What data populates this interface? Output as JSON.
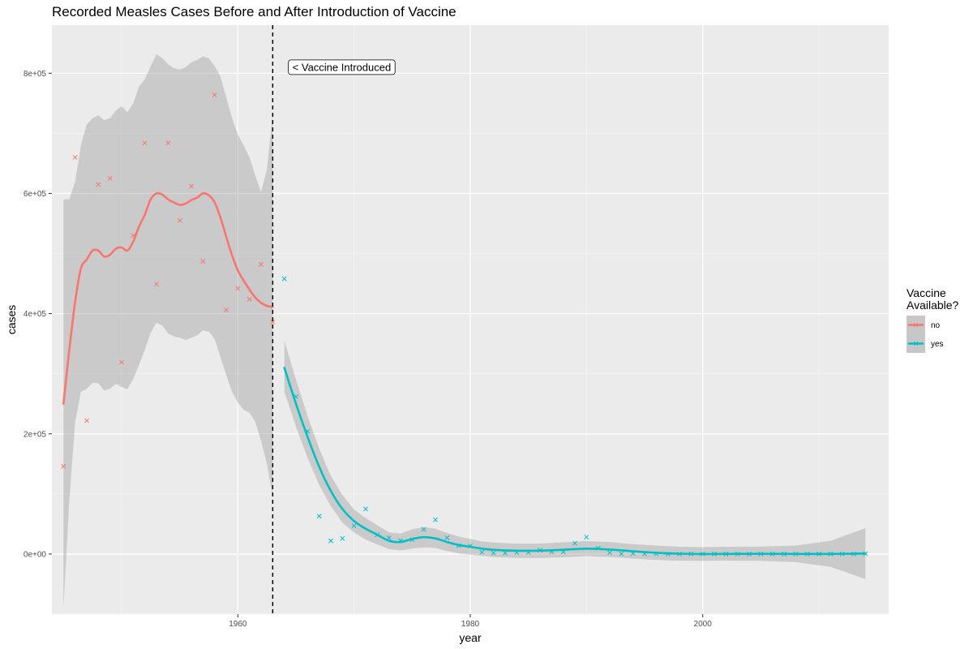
{
  "chart_data": {
    "type": "scatter",
    "title": "Recorded Measles Cases Before and After Introduction of Vaccine",
    "xlabel": "year",
    "ylabel": "cases",
    "xlim": [
      1944,
      2016
    ],
    "ylim": [
      -100000,
      880000
    ],
    "x_ticks": [
      1960,
      1980,
      2000
    ],
    "x_tick_labels": [
      "1960",
      "1980",
      "2000"
    ],
    "y_ticks": [
      0,
      200000,
      400000,
      600000,
      800000
    ],
    "y_tick_labels": [
      "0e+00",
      "2e+05",
      "4e+05",
      "6e+05",
      "8e+05"
    ],
    "grid": true,
    "legend": {
      "title_lines": [
        "Vaccine",
        "Available?"
      ],
      "position": "right"
    },
    "vline": {
      "x": 1963,
      "style": "dashed"
    },
    "annotation": {
      "text": "< Vaccine Introduced",
      "x": 1964,
      "y": 810000
    },
    "series": [
      {
        "name": "no",
        "color": "#F8766D",
        "points": [
          [
            1945,
            146000
          ],
          [
            1946,
            660000
          ],
          [
            1947,
            222000
          ],
          [
            1948,
            615000
          ],
          [
            1949,
            625000
          ],
          [
            1950,
            319000
          ],
          [
            1951,
            530000
          ],
          [
            1952,
            684000
          ],
          [
            1953,
            449000
          ],
          [
            1954,
            684000
          ],
          [
            1955,
            555000
          ],
          [
            1956,
            612000
          ],
          [
            1957,
            487000
          ],
          [
            1958,
            764000
          ],
          [
            1959,
            406000
          ],
          [
            1960,
            442000
          ],
          [
            1961,
            424000
          ],
          [
            1962,
            482000
          ],
          [
            1963,
            386000
          ]
        ],
        "smooth": [
          [
            1945,
            250000
          ],
          [
            1945.5,
            340000
          ],
          [
            1946,
            420000
          ],
          [
            1946.5,
            475000
          ],
          [
            1947,
            490000
          ],
          [
            1947.5,
            505000
          ],
          [
            1948,
            505000
          ],
          [
            1948.5,
            495000
          ],
          [
            1949,
            498000
          ],
          [
            1949.5,
            508000
          ],
          [
            1950,
            510000
          ],
          [
            1950.5,
            505000
          ],
          [
            1951,
            520000
          ],
          [
            1951.5,
            545000
          ],
          [
            1952,
            565000
          ],
          [
            1952.5,
            590000
          ],
          [
            1953,
            600000
          ],
          [
            1953.5,
            598000
          ],
          [
            1954,
            590000
          ],
          [
            1954.5,
            585000
          ],
          [
            1955,
            581000
          ],
          [
            1955.5,
            583000
          ],
          [
            1956,
            589000
          ],
          [
            1956.5,
            593000
          ],
          [
            1957,
            600000
          ],
          [
            1957.5,
            597000
          ],
          [
            1958,
            585000
          ],
          [
            1958.5,
            560000
          ],
          [
            1959,
            528000
          ],
          [
            1959.5,
            497000
          ],
          [
            1960,
            472000
          ],
          [
            1960.5,
            455000
          ],
          [
            1961,
            440000
          ],
          [
            1961.5,
            427000
          ],
          [
            1962,
            418000
          ],
          [
            1962.5,
            413000
          ],
          [
            1963,
            411000
          ]
        ],
        "ribbon_upper": [
          [
            1945,
            590000
          ],
          [
            1945.5,
            590000
          ],
          [
            1946,
            620000
          ],
          [
            1946.5,
            680000
          ],
          [
            1947,
            715000
          ],
          [
            1947.5,
            725000
          ],
          [
            1948,
            730000
          ],
          [
            1948.5,
            722000
          ],
          [
            1949,
            725000
          ],
          [
            1949.5,
            738000
          ],
          [
            1950,
            745000
          ],
          [
            1950.5,
            735000
          ],
          [
            1951,
            750000
          ],
          [
            1951.5,
            778000
          ],
          [
            1952,
            790000
          ],
          [
            1952.5,
            812000
          ],
          [
            1953,
            832000
          ],
          [
            1953.5,
            825000
          ],
          [
            1954,
            815000
          ],
          [
            1954.5,
            808000
          ],
          [
            1955,
            806000
          ],
          [
            1955.5,
            810000
          ],
          [
            1956,
            818000
          ],
          [
            1956.5,
            822000
          ],
          [
            1957,
            828000
          ],
          [
            1957.5,
            825000
          ],
          [
            1958,
            812000
          ],
          [
            1958.5,
            795000
          ],
          [
            1959,
            760000
          ],
          [
            1959.5,
            725000
          ],
          [
            1960,
            698000
          ],
          [
            1960.5,
            680000
          ],
          [
            1961,
            660000
          ],
          [
            1961.5,
            630000
          ],
          [
            1962,
            602000
          ],
          [
            1962.5,
            640000
          ],
          [
            1963,
            732000
          ]
        ],
        "ribbon_lower": [
          [
            1945,
            -90000
          ],
          [
            1945.5,
            90000
          ],
          [
            1946,
            220000
          ],
          [
            1946.5,
            270000
          ],
          [
            1947,
            275000
          ],
          [
            1947.5,
            285000
          ],
          [
            1948,
            284000
          ],
          [
            1948.5,
            272000
          ],
          [
            1949,
            275000
          ],
          [
            1949.5,
            283000
          ],
          [
            1950,
            278000
          ],
          [
            1950.5,
            274000
          ],
          [
            1951,
            291000
          ],
          [
            1951.5,
            315000
          ],
          [
            1952,
            340000
          ],
          [
            1952.5,
            368000
          ],
          [
            1953,
            385000
          ],
          [
            1953.5,
            380000
          ],
          [
            1954,
            367000
          ],
          [
            1954.5,
            362000
          ],
          [
            1955,
            360000
          ],
          [
            1955.5,
            356000
          ],
          [
            1956,
            360000
          ],
          [
            1956.5,
            364000
          ],
          [
            1957,
            372000
          ],
          [
            1957.5,
            370000
          ],
          [
            1958,
            358000
          ],
          [
            1958.5,
            328000
          ],
          [
            1959,
            298000
          ],
          [
            1959.5,
            270000
          ],
          [
            1960,
            252000
          ],
          [
            1960.5,
            240000
          ],
          [
            1961,
            235000
          ],
          [
            1961.5,
            220000
          ],
          [
            1962,
            188000
          ],
          [
            1962.5,
            150000
          ],
          [
            1963,
            95000
          ]
        ]
      },
      {
        "name": "yes",
        "color": "#00BFC4",
        "points": [
          [
            1964,
            458000
          ],
          [
            1965,
            262000
          ],
          [
            1966,
            204000
          ],
          [
            1967,
            63000
          ],
          [
            1968,
            22000
          ],
          [
            1969,
            26000
          ],
          [
            1970,
            47000
          ],
          [
            1971,
            75000
          ],
          [
            1972,
            32000
          ],
          [
            1973,
            27000
          ],
          [
            1974,
            22000
          ],
          [
            1975,
            24000
          ],
          [
            1976,
            41000
          ],
          [
            1977,
            57000
          ],
          [
            1978,
            27000
          ],
          [
            1979,
            14000
          ],
          [
            1980,
            13500
          ],
          [
            1981,
            3000
          ],
          [
            1982,
            1700
          ],
          [
            1983,
            1500
          ],
          [
            1984,
            2600
          ],
          [
            1985,
            2800
          ],
          [
            1986,
            6300
          ],
          [
            1987,
            3700
          ],
          [
            1988,
            3400
          ],
          [
            1989,
            18000
          ],
          [
            1990,
            28000
          ],
          [
            1991,
            9600
          ],
          [
            1992,
            2200
          ],
          [
            1993,
            300
          ],
          [
            1994,
            960
          ],
          [
            1995,
            300
          ],
          [
            1996,
            500
          ],
          [
            1997,
            140
          ],
          [
            1998,
            100
          ],
          [
            1999,
            100
          ],
          [
            2000,
            86
          ],
          [
            2001,
            116
          ],
          [
            2002,
            44
          ],
          [
            2003,
            56
          ],
          [
            2004,
            37
          ],
          [
            2005,
            66
          ],
          [
            2006,
            55
          ],
          [
            2007,
            43
          ],
          [
            2008,
            140
          ],
          [
            2009,
            71
          ],
          [
            2010,
            63
          ],
          [
            2011,
            220
          ],
          [
            2012,
            55
          ],
          [
            2013,
            187
          ],
          [
            2014,
            667
          ]
        ],
        "smooth": [
          [
            1964,
            310000
          ],
          [
            1965,
            250000
          ],
          [
            1966,
            195000
          ],
          [
            1967,
            145000
          ],
          [
            1968,
            105000
          ],
          [
            1969,
            75000
          ],
          [
            1970,
            55000
          ],
          [
            1971,
            42000
          ],
          [
            1972,
            32000
          ],
          [
            1973,
            22000
          ],
          [
            1974,
            20000
          ],
          [
            1975,
            25000
          ],
          [
            1976,
            28000
          ],
          [
            1977,
            26000
          ],
          [
            1978,
            20000
          ],
          [
            1979,
            15000
          ],
          [
            1980,
            12000
          ],
          [
            1981,
            9000
          ],
          [
            1982,
            7000
          ],
          [
            1984,
            5500
          ],
          [
            1986,
            5500
          ],
          [
            1988,
            7000
          ],
          [
            1990,
            9000
          ],
          [
            1992,
            7500
          ],
          [
            1994,
            4500
          ],
          [
            1996,
            2000
          ],
          [
            1998,
            500
          ],
          [
            2000,
            0
          ],
          [
            2002,
            200
          ],
          [
            2005,
            300
          ],
          [
            2008,
            200
          ],
          [
            2011,
            200
          ],
          [
            2014,
            800
          ]
        ],
        "ribbon_upper": [
          [
            1964,
            355000
          ],
          [
            1965,
            290000
          ],
          [
            1966,
            230000
          ],
          [
            1967,
            175000
          ],
          [
            1968,
            130000
          ],
          [
            1969,
            98000
          ],
          [
            1970,
            74000
          ],
          [
            1971,
            60000
          ],
          [
            1972,
            48000
          ],
          [
            1973,
            36000
          ],
          [
            1974,
            34000
          ],
          [
            1975,
            41000
          ],
          [
            1976,
            45000
          ],
          [
            1977,
            42000
          ],
          [
            1978,
            35000
          ],
          [
            1979,
            29000
          ],
          [
            1980,
            25000
          ],
          [
            1981,
            21000
          ],
          [
            1982,
            19000
          ],
          [
            1984,
            17500
          ],
          [
            1986,
            17500
          ],
          [
            1988,
            19500
          ],
          [
            1990,
            21500
          ],
          [
            1992,
            20000
          ],
          [
            1994,
            16500
          ],
          [
            1996,
            14000
          ],
          [
            1998,
            12000
          ],
          [
            2000,
            11500
          ],
          [
            2002,
            12000
          ],
          [
            2005,
            12500
          ],
          [
            2008,
            14000
          ],
          [
            2011,
            22000
          ],
          [
            2014,
            43000
          ]
        ],
        "ribbon_lower": [
          [
            1964,
            270000
          ],
          [
            1965,
            212000
          ],
          [
            1966,
            160000
          ],
          [
            1967,
            115000
          ],
          [
            1968,
            80000
          ],
          [
            1969,
            52000
          ],
          [
            1970,
            36000
          ],
          [
            1971,
            24000
          ],
          [
            1972,
            16000
          ],
          [
            1973,
            8000
          ],
          [
            1974,
            6000
          ],
          [
            1975,
            9000
          ],
          [
            1976,
            11000
          ],
          [
            1977,
            10000
          ],
          [
            1978,
            5000
          ],
          [
            1979,
            1000
          ],
          [
            1980,
            -1000
          ],
          [
            1981,
            -3000
          ],
          [
            1982,
            -5000
          ],
          [
            1984,
            -6500
          ],
          [
            1986,
            -6500
          ],
          [
            1988,
            -5500
          ],
          [
            1990,
            -3500
          ],
          [
            1992,
            -5000
          ],
          [
            1994,
            -7500
          ],
          [
            1996,
            -10000
          ],
          [
            1998,
            -11000
          ],
          [
            2000,
            -11500
          ],
          [
            2002,
            -11000
          ],
          [
            2005,
            -11500
          ],
          [
            2008,
            -13500
          ],
          [
            2011,
            -21500
          ],
          [
            2014,
            -41500
          ]
        ]
      }
    ]
  }
}
